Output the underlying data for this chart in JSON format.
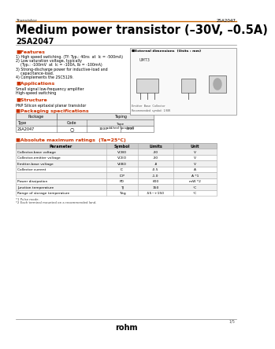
{
  "title_part": "2SA2047",
  "category": "Transistor",
  "main_title": "Medium power transistor (–30V, –0.5A)",
  "part_number": "2SA2047",
  "bg_color": "#ffffff",
  "features_title": "■Features",
  "features": [
    "1) High speed switching. (Tf: Typ.: 40ns  at  Ic = -500mA)",
    "2) Low saturation voltage, typically",
    "    (Typ.: -100mV  at  Ic = -100A, Ib = -100mA)",
    "3) Strong-discharge power for inductive-load and",
    "    capacitance-load.",
    "4) Complements the 2SC5129."
  ],
  "applications_title": "■Applications",
  "applications": [
    "Small signal low-frequency amplifier",
    "High-speed switching"
  ],
  "structure_title": "■Structure",
  "structure": "PNP Silicon epitaxial planar transistor",
  "packaging_title": "■Packaging specifications",
  "pkg_part": "2SA2047",
  "pkg_mark": "○",
  "ext_dim_title": "■External dimensions  (Units : mm)",
  "abs_title": "■Absolute maximum ratings  (Ta=25°C)",
  "abs_headers": [
    "Parameter",
    "Symbol",
    "Limits",
    "Unit"
  ],
  "abs_rows": [
    [
      "Collector-base voltage",
      "VCBO",
      "-30",
      "V"
    ],
    [
      "Collector-emitter voltage",
      "VCEO",
      "-30",
      "V"
    ],
    [
      "Emitter-base voltage",
      "VEBO",
      "-8",
      "V"
    ],
    [
      "Collector current",
      "IC",
      "-0.5",
      "A"
    ],
    [
      "",
      "ICP",
      "-1.0",
      "A *1"
    ],
    [
      "Power dissipation",
      "PD",
      "600",
      "mW *2"
    ],
    [
      "Junction temperature",
      "TJ",
      "150",
      "°C"
    ],
    [
      "Range of storage temperature",
      "Tstg",
      "-55~+150",
      "°C"
    ]
  ],
  "footnotes": [
    "*1 Pulse mode.",
    "*2 Each terminal mounted on a recommended land."
  ],
  "page_num": "1/5",
  "rohm_logo": "rohm"
}
